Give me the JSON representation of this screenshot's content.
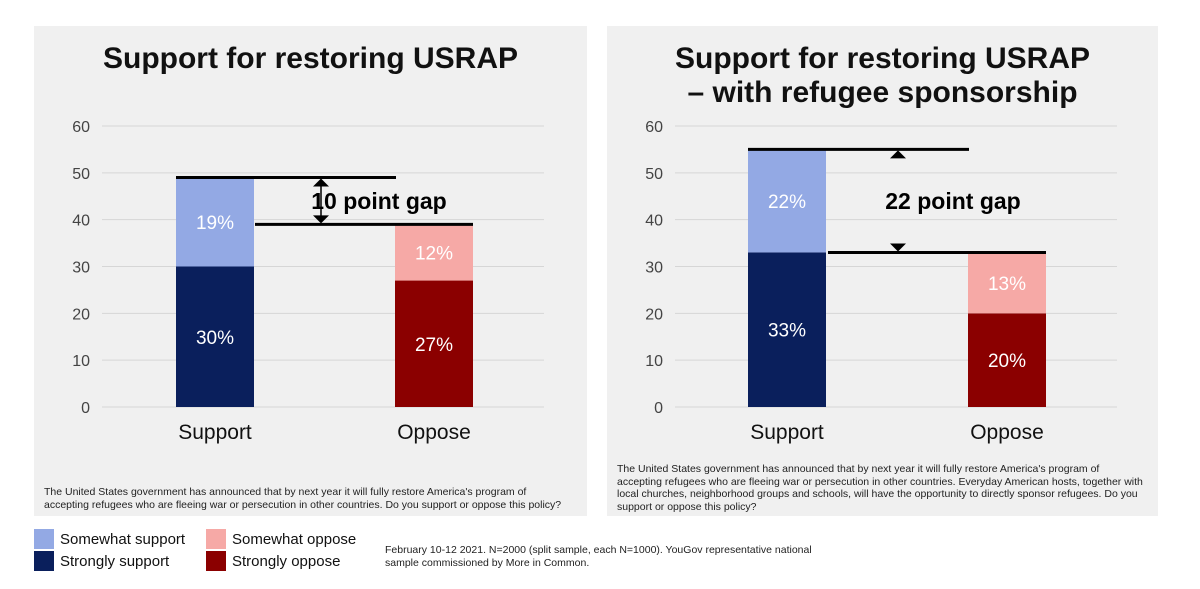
{
  "colors": {
    "somewhat_support": "#93a9e4",
    "strongly_support": "#0a1f5c",
    "somewhat_oppose": "#f6a9a6",
    "strongly_oppose": "#8b0000",
    "grid": "#d6d6d6",
    "axis_text": "#444444"
  },
  "legend": {
    "somewhat_support": "Somewhat support",
    "strongly_support": "Strongly support",
    "somewhat_oppose": "Somewhat oppose",
    "strongly_oppose": "Strongly oppose"
  },
  "source": "February 10-12 2021. N=2000 (split sample, each N=1000). YouGov representative national sample commissioned by More in Common.",
  "chart_data": [
    {
      "type": "bar",
      "stacked": true,
      "title": "Support for restoring USRAP",
      "categories": [
        "Support",
        "Oppose"
      ],
      "ylim": [
        0,
        60
      ],
      "yticks": [
        0,
        10,
        20,
        30,
        40,
        50,
        60
      ],
      "segments": [
        {
          "category": "Support",
          "series": "strongly_support",
          "value": 30,
          "label": "30%"
        },
        {
          "category": "Support",
          "series": "somewhat_support",
          "value": 19,
          "label": "19%"
        },
        {
          "category": "Oppose",
          "series": "strongly_oppose",
          "value": 27,
          "label": "27%"
        },
        {
          "category": "Oppose",
          "series": "somewhat_oppose",
          "value": 12,
          "label": "12%"
        }
      ],
      "gap_label": "10 point gap",
      "note": "The United States government has announced that by next year it will fully restore America's program of accepting refugees who are fleeing war or persecution in other countries. Do you support or oppose this policy?"
    },
    {
      "type": "bar",
      "stacked": true,
      "title": "Support for restoring USRAP – with refugee sponsorship",
      "categories": [
        "Support",
        "Oppose"
      ],
      "ylim": [
        0,
        60
      ],
      "yticks": [
        0,
        10,
        20,
        30,
        40,
        50,
        60
      ],
      "segments": [
        {
          "category": "Support",
          "series": "strongly_support",
          "value": 33,
          "label": "33%"
        },
        {
          "category": "Support",
          "series": "somewhat_support",
          "value": 22,
          "label": "22%"
        },
        {
          "category": "Oppose",
          "series": "strongly_oppose",
          "value": 20,
          "label": "20%"
        },
        {
          "category": "Oppose",
          "series": "somewhat_oppose",
          "value": 13,
          "label": "13%"
        }
      ],
      "gap_label": "22 point gap",
      "note": "The United States government has announced that by next year it will fully restore America's program of accepting refugees who are fleeing war or persecution in other countries. Everyday American hosts, together with local churches, neighborhood groups and schools, will have the opportunity to directly sponsor refugees. Do you support or oppose this policy?"
    }
  ]
}
